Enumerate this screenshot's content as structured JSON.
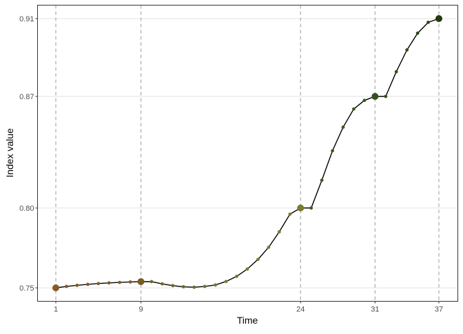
{
  "chart_data": {
    "type": "line",
    "title": "",
    "xlabel": "Time",
    "ylabel": "Index value",
    "xlim": [
      1,
      37
    ],
    "ylim": [
      0.75,
      0.91
    ],
    "y_scale": "nonlinear (ticks placed at highlighted values)",
    "x_ticks": [
      1,
      9,
      24,
      31,
      37
    ],
    "y_ticks": [
      "0.75",
      "0.80",
      "0.87",
      "0.91"
    ],
    "y_tick_values": [
      0.75,
      0.8,
      0.87,
      0.91
    ],
    "vertical_reference_lines": [
      1,
      9,
      24,
      31,
      37
    ],
    "grid": "horizontal major only",
    "line_color": "#000000",
    "highlighted_points": [
      1,
      9,
      24,
      31,
      37
    ],
    "x": [
      1,
      2,
      3,
      4,
      5,
      6,
      7,
      8,
      9,
      10,
      11,
      12,
      13,
      14,
      15,
      16,
      17,
      18,
      19,
      20,
      21,
      22,
      23,
      24,
      25,
      26,
      27,
      28,
      29,
      30,
      31,
      32,
      33,
      34,
      35,
      36,
      37
    ],
    "y": [
      0.75,
      0.7509,
      0.7516,
      0.7522,
      0.7527,
      0.7531,
      0.7534,
      0.7537,
      0.7539,
      0.7539,
      0.7525,
      0.7514,
      0.7507,
      0.7504,
      0.7509,
      0.7518,
      0.754,
      0.7572,
      0.7618,
      0.7678,
      0.7754,
      0.7851,
      0.7961,
      0.8,
      0.8,
      0.8174,
      0.8359,
      0.8507,
      0.8621,
      0.8675,
      0.87,
      0.87,
      0.8827,
      0.8939,
      0.9025,
      0.9081,
      0.91
    ],
    "point_colors": [
      "#8a5a22",
      "#7e5e22",
      "#7e5e22",
      "#7e5e22",
      "#7e5e22",
      "#7e5e22",
      "#7e5e22",
      "#7e5e22",
      "#7b5c1f",
      "#6f6a2a",
      "#6f6a2a",
      "#6f6a2a",
      "#6f6a2a",
      "#6f6a2a",
      "#737030",
      "#767430",
      "#787832",
      "#7a7a32",
      "#7a7a32",
      "#7a7a32",
      "#7a7a32",
      "#7a7a32",
      "#7a7a32",
      "#7a7a30",
      "#3b5a22",
      "#3b5a22",
      "#3b5a22",
      "#3b5a22",
      "#3b5a22",
      "#3b5a22",
      "#34521d",
      "#34521d",
      "#30501b",
      "#2f4d1b",
      "#2c4818",
      "#2a4616",
      "#223a0e"
    ]
  }
}
